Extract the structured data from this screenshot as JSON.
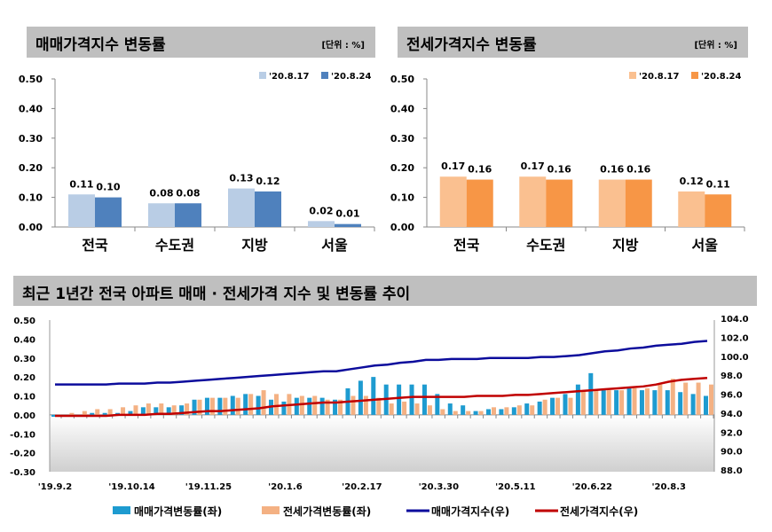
{
  "chart_data": [
    {
      "type": "bar",
      "title": "매매가격지수 변동률",
      "unit": "[단위 : %]",
      "categories": [
        "전국",
        "수도권",
        "지방",
        "서울"
      ],
      "series": [
        {
          "name": "'20.8.17",
          "values": [
            0.11,
            0.08,
            0.13,
            0.02
          ],
          "color": "#b9cde5"
        },
        {
          "name": "'20.8.24",
          "values": [
            0.1,
            0.08,
            0.12,
            0.01
          ],
          "color": "#4f81bd"
        }
      ],
      "ylim": [
        0,
        0.5
      ],
      "yticks": [
        "0.50",
        "0.40",
        "0.30",
        "0.20",
        "0.10",
        "0.00"
      ],
      "legend": "top-right"
    },
    {
      "type": "bar",
      "title": "전세가격지수 변동률",
      "unit": "[단위 : %]",
      "categories": [
        "전국",
        "수도권",
        "지방",
        "서울"
      ],
      "series": [
        {
          "name": "'20.8.17",
          "values": [
            0.17,
            0.17,
            0.16,
            0.12
          ],
          "color": "#fac090"
        },
        {
          "name": "'20.8.24",
          "values": [
            0.16,
            0.16,
            0.16,
            0.11
          ],
          "color": "#f79646"
        }
      ],
      "ylim": [
        0,
        0.5
      ],
      "yticks": [
        "0.50",
        "0.40",
        "0.30",
        "0.20",
        "0.10",
        "0.00"
      ],
      "legend": "top-right"
    },
    {
      "type": "bar+line",
      "title": "최근 1년간 전국 아파트 매매 · 전세가격 지수 및 변동률 추이",
      "xticks": [
        "'19.9.2",
        "'19.10.14",
        "'19.11.25",
        "'20.1.6",
        "'20.2.17",
        "'20.3.30",
        "'20.5.11",
        "'20.6.22",
        "'20.8.3"
      ],
      "ylim_left": [
        -0.3,
        0.5
      ],
      "yticks_left": [
        "0.50",
        "0.40",
        "0.30",
        "0.20",
        "0.10",
        "0.00",
        "-0.10",
        "-0.20",
        "-0.30"
      ],
      "ylim_right": [
        88,
        104
      ],
      "yticks_right": [
        "104.0",
        "102.0",
        "100.0",
        "98.0",
        "96.0",
        "94.0",
        "92.0",
        "90.0",
        "88.0"
      ],
      "legend": "bottom",
      "series": [
        {
          "name": "매매가격변동률(좌)",
          "type": "bar",
          "axis": "left",
          "color": "#1e9bd0",
          "values": [
            -0.01,
            0.0,
            0.0,
            0.01,
            0.01,
            0.01,
            0.02,
            0.04,
            0.04,
            0.04,
            0.05,
            0.08,
            0.09,
            0.09,
            0.1,
            0.11,
            0.1,
            0.08,
            0.07,
            0.09,
            0.09,
            0.09,
            0.08,
            0.14,
            0.18,
            0.2,
            0.16,
            0.16,
            0.16,
            0.16,
            0.11,
            0.06,
            0.05,
            0.02,
            0.03,
            0.03,
            0.04,
            0.06,
            0.07,
            0.09,
            0.11,
            0.16,
            0.22,
            0.13,
            0.13,
            0.14,
            0.13,
            0.13,
            0.13,
            0.12,
            0.11,
            0.1
          ]
        },
        {
          "name": "전세가격변동률(좌)",
          "type": "bar",
          "axis": "left",
          "color": "#f4b183",
          "values": [
            0.0,
            0.01,
            0.02,
            0.03,
            0.03,
            0.04,
            0.05,
            0.06,
            0.06,
            0.05,
            0.06,
            0.08,
            0.09,
            0.09,
            0.09,
            0.11,
            0.13,
            0.11,
            0.11,
            0.1,
            0.1,
            0.08,
            0.08,
            0.1,
            0.1,
            0.09,
            0.06,
            0.07,
            0.06,
            0.05,
            0.03,
            0.02,
            0.02,
            0.02,
            0.04,
            0.04,
            0.05,
            0.05,
            0.08,
            0.09,
            0.09,
            0.13,
            0.13,
            0.13,
            0.13,
            0.14,
            0.14,
            0.16,
            0.19,
            0.17,
            0.17,
            0.16
          ]
        },
        {
          "name": "매매가격지수(우)",
          "type": "line",
          "axis": "right",
          "color": "#0c0c9c",
          "values": [
            97.2,
            97.2,
            97.2,
            97.2,
            97.2,
            97.3,
            97.3,
            97.3,
            97.4,
            97.4,
            97.5,
            97.6,
            97.7,
            97.8,
            97.9,
            98.0,
            98.1,
            98.2,
            98.3,
            98.4,
            98.5,
            98.6,
            98.6,
            98.8,
            99.0,
            99.2,
            99.3,
            99.5,
            99.6,
            99.8,
            99.8,
            99.9,
            99.9,
            99.9,
            100.0,
            100.0,
            100.0,
            100.0,
            100.1,
            100.1,
            100.2,
            100.3,
            100.5,
            100.7,
            100.8,
            101.0,
            101.1,
            101.3,
            101.4,
            101.5,
            101.7,
            101.8
          ]
        },
        {
          "name": "전세가격지수(우)",
          "type": "line",
          "axis": "right",
          "color": "#c00000",
          "values": [
            93.9,
            93.9,
            93.9,
            93.9,
            93.9,
            94.0,
            94.0,
            94.0,
            94.1,
            94.1,
            94.2,
            94.3,
            94.4,
            94.4,
            94.5,
            94.6,
            94.7,
            94.9,
            95.0,
            95.1,
            95.2,
            95.3,
            95.3,
            95.4,
            95.5,
            95.6,
            95.7,
            95.8,
            95.9,
            95.9,
            95.9,
            95.9,
            95.9,
            96.0,
            96.0,
            96.0,
            96.1,
            96.1,
            96.2,
            96.3,
            96.4,
            96.5,
            96.6,
            96.7,
            96.8,
            96.9,
            97.0,
            97.2,
            97.5,
            97.7,
            97.8,
            97.9
          ]
        }
      ]
    }
  ]
}
